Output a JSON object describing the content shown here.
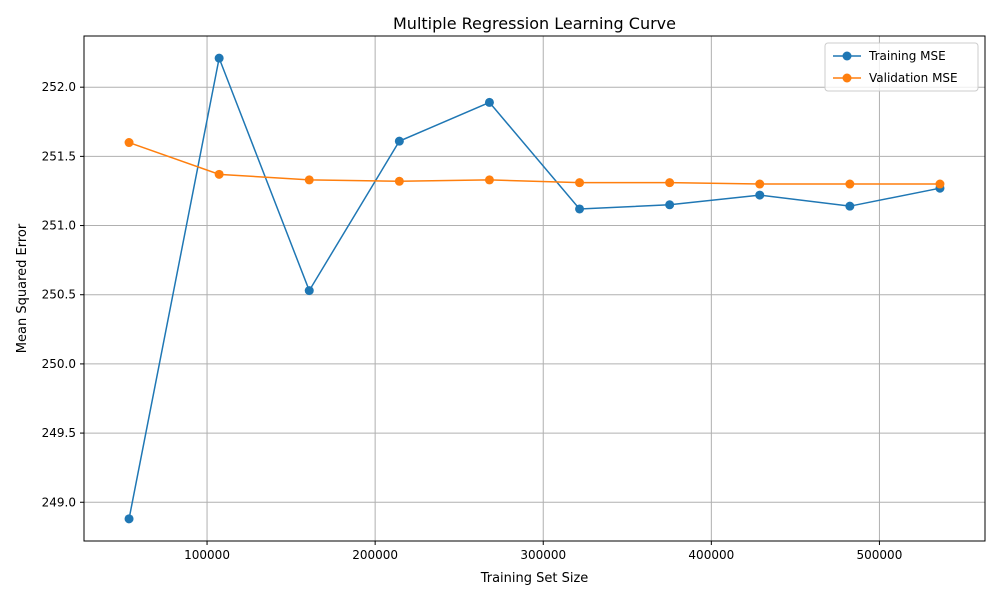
{
  "chart_data": {
    "type": "line",
    "title": "Multiple Regression Learning Curve",
    "xlabel": "Training Set Size",
    "ylabel": "Mean Squared Error",
    "x": [
      53600,
      107200,
      160800,
      214400,
      268000,
      321600,
      375200,
      428800,
      482400,
      536000
    ],
    "series": [
      {
        "name": "Training MSE",
        "color": "#1f77b4",
        "values": [
          248.88,
          252.21,
          250.53,
          251.61,
          251.89,
          251.12,
          251.15,
          251.22,
          251.14,
          251.27
        ]
      },
      {
        "name": "Validation MSE",
        "color": "#ff7f0e",
        "values": [
          251.6,
          251.37,
          251.33,
          251.32,
          251.33,
          251.31,
          251.31,
          251.3,
          251.3,
          251.3
        ]
      }
    ],
    "xlim": [
      26800,
      562800
    ],
    "ylim": [
      248.72,
      252.37
    ],
    "xticks": [
      100000,
      200000,
      300000,
      400000,
      500000
    ],
    "xtick_labels": [
      "100000",
      "200000",
      "300000",
      "400000",
      "500000"
    ],
    "yticks": [
      249.0,
      249.5,
      250.0,
      250.5,
      251.0,
      251.5,
      252.0
    ],
    "ytick_labels": [
      "249.0",
      "249.5",
      "250.0",
      "250.5",
      "251.0",
      "251.5",
      "252.0"
    ],
    "grid": true,
    "legend": "top-right"
  }
}
